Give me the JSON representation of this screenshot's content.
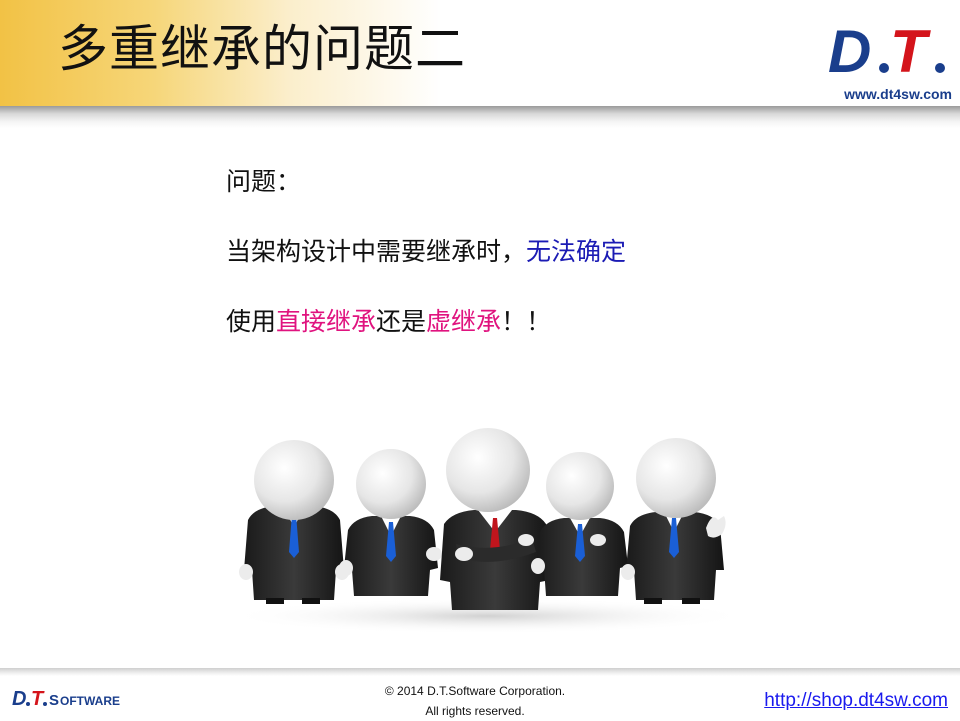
{
  "header": {
    "title": "多重继承的问题二",
    "logo_text": "D.T.",
    "logo_url": "www.dt4sw.com"
  },
  "content": {
    "line1": "问题：",
    "line2_plain": "当架构设计中需要继承时，",
    "line2_highlight": "无法确定",
    "line3_part1": "使用",
    "line3_highlight1": "直接继承",
    "line3_part2": "还是",
    "line3_highlight2": "虚继承",
    "line3_part3": "！！"
  },
  "footer": {
    "logo_dt": "D.T.",
    "logo_software": "SOFTWARE",
    "copyright_line1": "© 2014 D.T.Software Corporation.",
    "copyright_line2": "All rights reserved.",
    "shop_url": "http://shop.dt4sw.com"
  },
  "colors": {
    "header_gold": "#f2c245",
    "logo_blue": "#1a3e8c",
    "logo_red": "#d4141b",
    "highlight_blue": "#1b1bb4",
    "highlight_pink": "#e0137f",
    "link_blue": "#1a1aee"
  },
  "figures": {
    "count": 5,
    "description_icon": "business-people-3d-icon"
  }
}
